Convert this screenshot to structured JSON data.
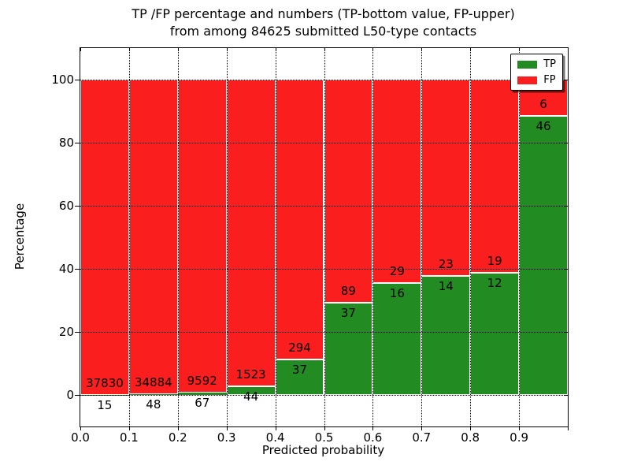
{
  "title": {
    "line1": "TP /FP percentage and numbers (TP-bottom value, FP-upper)",
    "line2": "from among 84625 submitted L50-type contacts"
  },
  "axes": {
    "x_label": "Predicted probability",
    "y_label": "Percentage",
    "x_ticks": [
      "0.0",
      "0.1",
      "0.2",
      "0.3",
      "0.4",
      "0.5",
      "0.6",
      "0.7",
      "0.8",
      "0.9"
    ],
    "y_ticks": [
      "0",
      "20",
      "40",
      "60",
      "80",
      "100"
    ]
  },
  "legend": {
    "items": [
      {
        "label": "TP",
        "color": "#228b22"
      },
      {
        "label": "FP",
        "color": "#fa1e1e"
      }
    ]
  },
  "chart_data": {
    "type": "bar",
    "stacked": true,
    "normalized_to_percent": true,
    "title": "TP /FP percentage and numbers (TP-bottom value, FP-upper) from among 84625 submitted L50-type contacts",
    "xlabel": "Predicted probability",
    "ylabel": "Percentage",
    "total_contacts": 84625,
    "categories": [
      "0.0-0.1",
      "0.1-0.2",
      "0.2-0.3",
      "0.3-0.4",
      "0.4-0.5",
      "0.5-0.6",
      "0.6-0.7",
      "0.7-0.8",
      "0.8-0.9",
      "0.9-1.0"
    ],
    "series": [
      {
        "name": "TP",
        "color": "#228b22",
        "counts": [
          15,
          48,
          67,
          44,
          37,
          37,
          16,
          14,
          12,
          46
        ],
        "percent": [
          0.04,
          0.14,
          0.69,
          2.81,
          11.18,
          29.37,
          35.56,
          37.84,
          38.71,
          88.46
        ]
      },
      {
        "name": "FP",
        "color": "#fa1e1e",
        "counts": [
          37830,
          34884,
          9592,
          1523,
          294,
          89,
          29,
          23,
          19,
          6
        ],
        "percent": [
          99.96,
          99.86,
          99.31,
          97.19,
          88.82,
          70.63,
          64.44,
          62.16,
          61.29,
          11.54
        ]
      }
    ],
    "xlim": [
      0.0,
      1.0
    ],
    "ylim": [
      -10,
      110
    ],
    "x_tick_values": [
      0.0,
      0.1,
      0.2,
      0.3,
      0.4,
      0.5,
      0.6,
      0.7,
      0.8,
      0.9
    ],
    "y_tick_values": [
      0,
      20,
      40,
      60,
      80,
      100
    ],
    "grid": "dotted",
    "legend_position": "upper right",
    "bar_edge_color": "#ffffff"
  }
}
